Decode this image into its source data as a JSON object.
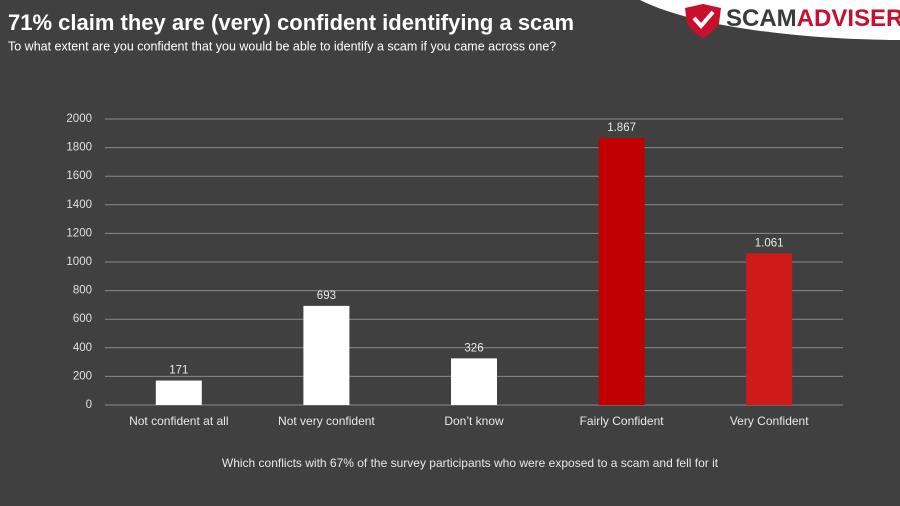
{
  "chart_data": {
    "type": "bar",
    "title": "71% claim they are (very) confident identifying a scam",
    "subtitle": "To what extent are you confident that you would be able to identify a scam if you came across one?",
    "footnote": "Which conflicts with 67% of the survey participants who were exposed to a scam and fell for it",
    "brand": [
      "SCAM",
      "ADVISER"
    ],
    "categories": [
      "Not confident at all",
      "Not very confident",
      "Don’t know",
      "Fairly Confident",
      "Very Confident"
    ],
    "values": [
      171,
      693,
      326,
      1867,
      1061
    ],
    "value_labels": [
      "171",
      "693",
      "326",
      "1.867",
      "1.061"
    ],
    "colors": [
      "#ffffff",
      "#ffffff",
      "#ffffff",
      "#c00000",
      "#d01a1a"
    ],
    "ylim": [
      0,
      2000
    ],
    "yticks": [
      0,
      200,
      400,
      600,
      800,
      1000,
      1200,
      1400,
      1600,
      1800,
      2000
    ],
    "grid": true
  }
}
